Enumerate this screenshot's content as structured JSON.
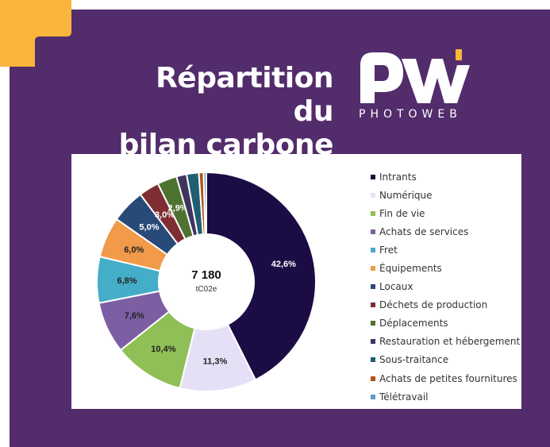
{
  "header": {
    "title_line1": "Répartition du",
    "title_line2": "bilan carbone",
    "logo_mark": "PW",
    "logo_text": "PHOTOWEB"
  },
  "colors": {
    "background": "#532c6c",
    "accent": "#f9b53c",
    "card": "#ffffff"
  },
  "chart_data": {
    "type": "pie",
    "donut": true,
    "center_value": "7 180",
    "center_unit": "tC02e",
    "legend_position": "right",
    "slices": [
      {
        "name": "Intrants",
        "value": 42.6,
        "label": "42,6%",
        "color": "#1c0c44",
        "label_color": "#ffffff"
      },
      {
        "name": "Numérique",
        "value": 11.3,
        "label": "11,3%",
        "color": "#e6e0f7",
        "label_color": "#222222"
      },
      {
        "name": "Fin de vie",
        "value": 10.4,
        "label": "10,4%",
        "color": "#8fbf56",
        "label_color": "#222222"
      },
      {
        "name": "Achats de services",
        "value": 7.6,
        "label": "7,6%",
        "color": "#7c5ea3",
        "label_color": "#222222"
      },
      {
        "name": "Fret",
        "value": 6.8,
        "label": "6,8%",
        "color": "#44adc7",
        "label_color": "#222222"
      },
      {
        "name": "Équipements",
        "value": 6.0,
        "label": "6,0%",
        "color": "#f19a4a",
        "label_color": "#222222"
      },
      {
        "name": "Locaux",
        "value": 5.0,
        "label": "5,0%",
        "color": "#274a77",
        "label_color": "#ffffff"
      },
      {
        "name": "Déchets de production",
        "value": 3.0,
        "label": "3,0%",
        "color": "#7e2d33",
        "label_color": "#ffffff"
      },
      {
        "name": "Déplacements",
        "value": 2.9,
        "label": "2,9%",
        "color": "#4e7330",
        "label_color": "#ffffff"
      },
      {
        "name": "Restauration et hébergement",
        "value": 1.5,
        "label": "",
        "color": "#3f345e",
        "label_color": "#ffffff"
      },
      {
        "name": "Sous-traitance",
        "value": 1.8,
        "label": "",
        "color": "#1f5e73",
        "label_color": "#ffffff"
      },
      {
        "name": "Achats de petites fournitures",
        "value": 0.7,
        "label": "",
        "color": "#b25216",
        "label_color": "#ffffff"
      },
      {
        "name": "Télétravail",
        "value": 0.4,
        "label": "",
        "color": "#6495cd",
        "label_color": "#ffffff"
      }
    ]
  }
}
